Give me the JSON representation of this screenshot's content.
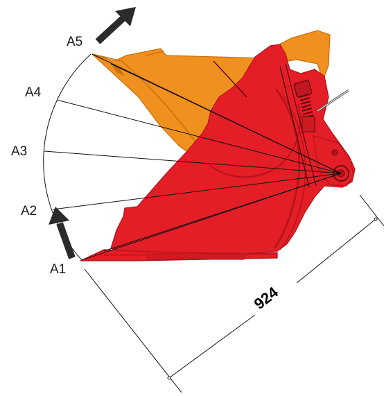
{
  "diagram": {
    "position_labels": [
      "A1",
      "A2",
      "A3",
      "A4",
      "A5"
    ],
    "dimension_value": "924",
    "colors": {
      "bucket_red": "#e41e26",
      "bucket_red_dark": "#b5121b",
      "bucket_orange": "#f0901e",
      "bucket_orange_dark": "#c96f0e",
      "lines": "#111111",
      "arrow": "#2b2b2b"
    },
    "icons": [
      "arrow-up-icon",
      "arrow-up-right-icon"
    ]
  }
}
